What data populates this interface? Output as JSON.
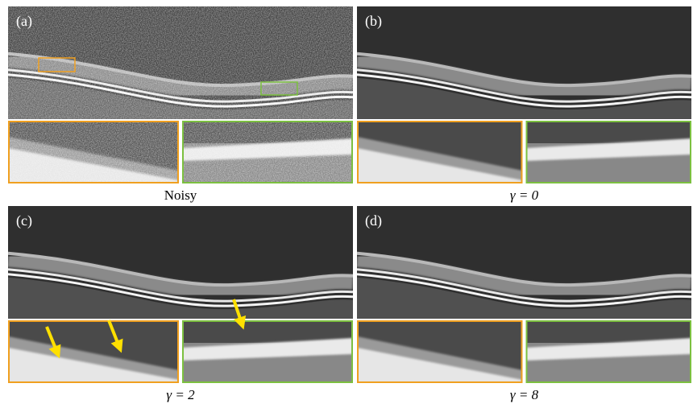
{
  "panels": [
    {
      "label": "(a)",
      "caption": "Noisy"
    },
    {
      "label": "(b)",
      "caption": "γ = 0"
    },
    {
      "label": "(c)",
      "caption": "γ = 2"
    },
    {
      "label": "(d)",
      "caption": "γ = 8"
    }
  ]
}
